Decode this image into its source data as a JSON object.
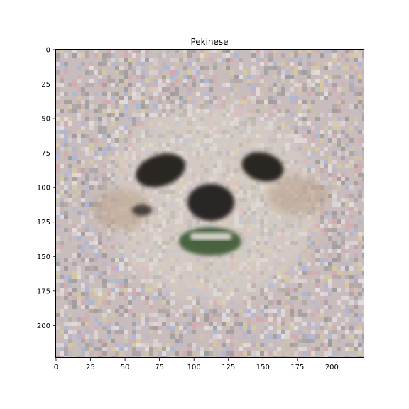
{
  "chart_data": {
    "type": "image",
    "title": "Pekinese",
    "image_width": 224,
    "image_height": 224,
    "xlim": [
      -0.5,
      223.5
    ],
    "ylim": [
      223.5,
      -0.5
    ],
    "x_ticks": [
      0,
      25,
      50,
      75,
      100,
      125,
      150,
      175,
      200
    ],
    "y_ticks": [
      0,
      25,
      50,
      75,
      100,
      125,
      150,
      175,
      200
    ],
    "xlabel": "",
    "ylabel": "",
    "grid": false,
    "content": "noisy adversarial-style image of a Pekinese dog face",
    "colors": {
      "noise_base": "#c8bcbc",
      "noise_gray": "#9a9696",
      "noise_light": "#e8e2e2",
      "accent_blue": "#a6b6da",
      "accent_pink": "#d6a6ae",
      "accent_yellow": "#d8cd98",
      "fur": "#ded6cc",
      "fur_shadow": "#b89e88",
      "eye": "#2b2624",
      "nose": "#2a2726",
      "mouth_green": "#4a6440",
      "teeth": "#d8d6ce"
    }
  }
}
